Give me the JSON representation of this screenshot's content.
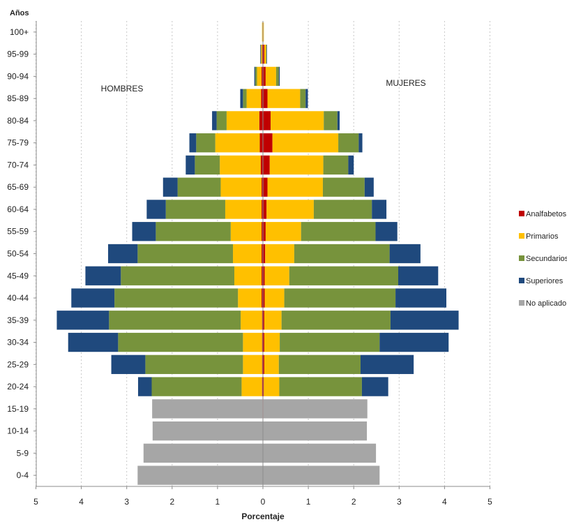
{
  "chart_data": {
    "type": "bar",
    "subtype": "population-pyramid-stacked",
    "ylabel": "Años",
    "xlabel": "Porcentaje",
    "left_label": "HOMBRES",
    "right_label": "MUJERES",
    "xlim": [
      -5,
      5
    ],
    "x_tick_values": [
      -5,
      -4,
      -3,
      -2,
      -1,
      0,
      1,
      2,
      3,
      4,
      5
    ],
    "x_tick_labels": [
      "5",
      "4",
      "3",
      "2",
      "1",
      "0",
      "1",
      "2",
      "3",
      "4",
      "5"
    ],
    "grid": "vertical-dashed",
    "legend_position": "right",
    "categories": [
      "100+",
      "95-99",
      "90-94",
      "85-89",
      "80-84",
      "75-79",
      "70-74",
      "65-69",
      "60-64",
      "55-59",
      "50-54",
      "45-49",
      "40-44",
      "35-39",
      "30-34",
      "25-29",
      "20-24",
      "15-19",
      "10-14",
      "5-9",
      "0-4"
    ],
    "series": [
      {
        "name": "Analfabetos",
        "color": "#c00000",
        "hombres": [
          0.01,
          0.02,
          0.03,
          0.04,
          0.08,
          0.07,
          0.05,
          0.03,
          0.03,
          0.03,
          0.03,
          0.03,
          0.03,
          0.02,
          0.02,
          0.02,
          0.02,
          0.01,
          0,
          0,
          0
        ],
        "mujeres": [
          0.01,
          0.03,
          0.06,
          0.1,
          0.17,
          0.21,
          0.15,
          0.1,
          0.08,
          0.06,
          0.05,
          0.04,
          0.04,
          0.03,
          0.03,
          0.03,
          0.02,
          0.01,
          0,
          0,
          0
        ]
      },
      {
        "name": "Primarios",
        "color": "#ffc000",
        "hombres": [
          0.01,
          0.02,
          0.1,
          0.32,
          0.72,
          0.98,
          0.9,
          0.9,
          0.8,
          0.68,
          0.63,
          0.6,
          0.52,
          0.47,
          0.42,
          0.42,
          0.45,
          0,
          0,
          0,
          0
        ],
        "mujeres": [
          0.01,
          0.04,
          0.23,
          0.72,
          1.17,
          1.45,
          1.18,
          1.22,
          1.04,
          0.78,
          0.64,
          0.54,
          0.43,
          0.38,
          0.34,
          0.32,
          0.34,
          0,
          0,
          0,
          0
        ]
      },
      {
        "name": "Secundarios",
        "color": "#77933c",
        "hombres": [
          0,
          0.01,
          0.04,
          0.08,
          0.22,
          0.42,
          0.55,
          0.95,
          1.31,
          1.65,
          2.1,
          2.5,
          2.72,
          2.9,
          2.75,
          2.15,
          1.98,
          0,
          0,
          0,
          0
        ],
        "mujeres": [
          0,
          0.01,
          0.06,
          0.12,
          0.3,
          0.45,
          0.55,
          0.92,
          1.28,
          1.64,
          2.1,
          2.4,
          2.45,
          2.4,
          2.2,
          1.8,
          1.82,
          0,
          0,
          0,
          0
        ],
        "value_scale_note": ""
      },
      {
        "name": "Superiores",
        "color": "#1f497d",
        "hombres": [
          0,
          0.01,
          0.02,
          0.06,
          0.1,
          0.15,
          0.2,
          0.32,
          0.42,
          0.52,
          0.65,
          0.78,
          0.95,
          1.15,
          1.1,
          0.75,
          0.3,
          0,
          0,
          0,
          0
        ],
        "mujeres": [
          0,
          0.01,
          0.02,
          0.05,
          0.05,
          0.08,
          0.12,
          0.2,
          0.32,
          0.48,
          0.68,
          0.88,
          1.12,
          1.5,
          1.52,
          1.17,
          0.58,
          0,
          0,
          0,
          0
        ]
      },
      {
        "name": "No aplicado",
        "color": "#a6a6a6",
        "hombres": [
          0,
          0,
          0,
          0,
          0,
          0,
          0,
          0,
          0,
          0,
          0,
          0,
          0,
          0,
          0,
          0,
          0,
          2.43,
          2.43,
          2.63,
          2.76
        ],
        "mujeres": [
          0,
          0,
          0,
          0,
          0,
          0,
          0,
          0,
          0,
          0,
          0,
          0,
          0,
          0,
          0,
          0,
          0,
          2.29,
          2.29,
          2.49,
          2.57
        ]
      }
    ]
  }
}
